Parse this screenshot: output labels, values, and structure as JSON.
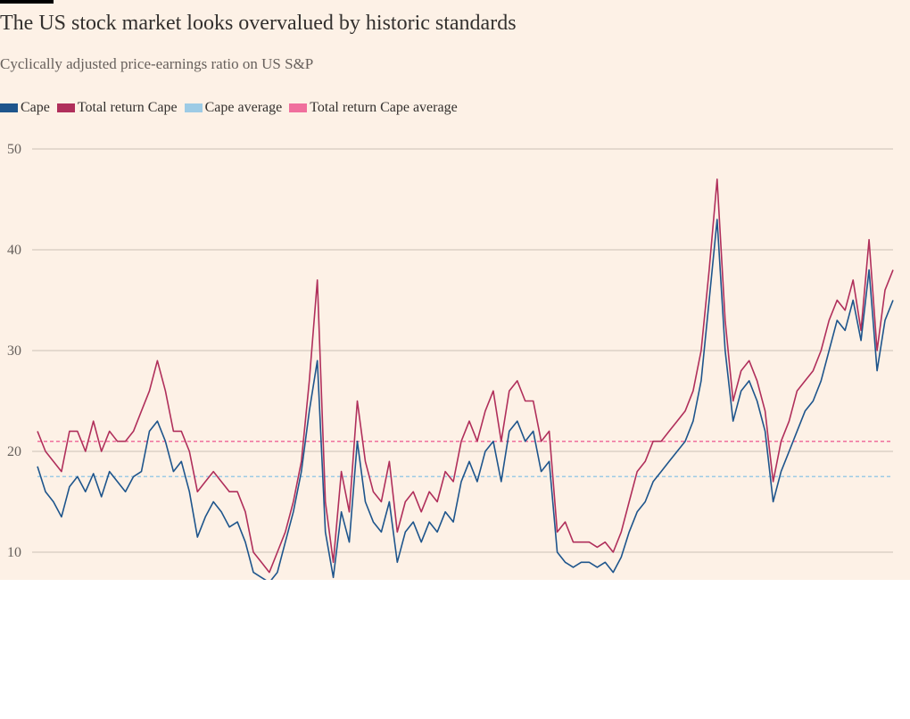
{
  "chart_data": {
    "type": "line",
    "title": "The US stock market looks overvalued by historic standards",
    "subtitle": "Cyclically adjusted price-earnings ratio on US S&P",
    "ylim": [
      7,
      50
    ],
    "yticks": [
      10,
      20,
      30,
      40,
      50
    ],
    "grid": true,
    "legend_position": "top-left",
    "series": [
      {
        "name": "Cape",
        "color": "#1e558c",
        "values": [
          18.5,
          16,
          15,
          13.5,
          16.5,
          17.5,
          16,
          17.8,
          15.5,
          18,
          17,
          16,
          17.5,
          18,
          22,
          23,
          21,
          18,
          19,
          16,
          11.5,
          13.5,
          15,
          14,
          12.5,
          13,
          11,
          8,
          7.5,
          7,
          8,
          11,
          14,
          18,
          24,
          29,
          12,
          7.5,
          14,
          11,
          21,
          15,
          13,
          12,
          15,
          9,
          12,
          13,
          11,
          13,
          12,
          14,
          13,
          17,
          19,
          17,
          20,
          21,
          17,
          22,
          23,
          21,
          22,
          18,
          19,
          10,
          9,
          8.5,
          9,
          9,
          8.5,
          9,
          8,
          9.5,
          12,
          14,
          15,
          17,
          18,
          19,
          20,
          21,
          23,
          27,
          35,
          43,
          30,
          23,
          26,
          27,
          25,
          22,
          15,
          18,
          20,
          22,
          24,
          25,
          27,
          30,
          33,
          32,
          35,
          31,
          38,
          28,
          33,
          35
        ]
      },
      {
        "name": "Total return Cape",
        "color": "#b02f5b",
        "values": [
          22,
          20,
          19,
          18,
          22,
          22,
          20,
          23,
          20,
          22,
          21,
          21,
          22,
          24,
          26,
          29,
          26,
          22,
          22,
          20,
          16,
          17,
          18,
          17,
          16,
          16,
          14,
          10,
          9,
          8,
          10,
          12,
          15,
          19,
          27,
          37,
          15,
          9,
          18,
          14,
          25,
          19,
          16,
          15,
          19,
          12,
          15,
          16,
          14,
          16,
          15,
          18,
          17,
          21,
          23,
          21,
          24,
          26,
          21,
          26,
          27,
          25,
          25,
          21,
          22,
          12,
          13,
          11,
          11,
          11,
          10.5,
          11,
          10,
          12,
          15,
          18,
          19,
          21,
          21,
          22,
          23,
          24,
          26,
          30,
          38,
          47,
          33,
          25,
          28,
          29,
          27,
          24,
          17,
          21,
          23,
          26,
          27,
          28,
          30,
          33,
          35,
          34,
          37,
          32,
          41,
          30,
          36,
          38
        ]
      },
      {
        "name": "Cape average",
        "color": "#9dcbe5",
        "average": 17.5
      },
      {
        "name": "Total return Cape average",
        "color": "#f06f9d",
        "average": 21
      }
    ]
  }
}
